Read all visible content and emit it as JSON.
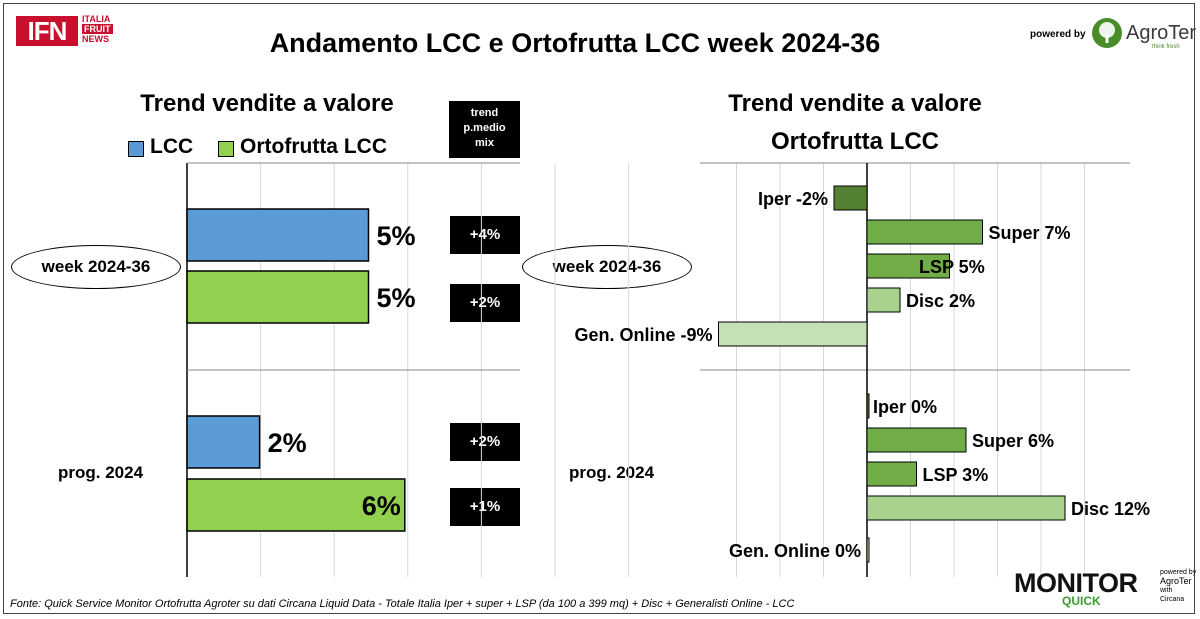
{
  "header": {
    "title": "Andamento LCC e Ortofrutta LCC week 2024-36",
    "logo_main": "IFN",
    "logo_side": [
      "ITALIA",
      "FRUIT",
      "NEWS"
    ],
    "powered_by": "powered by",
    "brand": "AgroTer",
    "brand_tagline": "think fresh"
  },
  "footer": {
    "source": "Fonte: Quick Service Monitor Ortofrutta Agroter su dati Circana Liquid Data - Totale Italia Iper + super + LSP (da 100 a 399 mq) + Disc + Generalisti Online - LCC",
    "monitor": "MONITOR",
    "quick": "QUICK",
    "powered_small": [
      "powered by",
      "AgroTer",
      "with",
      "Circana"
    ]
  },
  "colors": {
    "lcc": "#5b9bd5",
    "ortofrutta": "#92d050",
    "iper": "#548235",
    "super": "#70ad47",
    "lsp": "#70ad47",
    "disc": "#a9d18e",
    "online": "#c5e0b4",
    "grid": "#d9d9d9"
  },
  "chart_data": [
    {
      "type": "bar",
      "orientation": "horizontal",
      "title": "Trend vendite a valore",
      "legend": [
        "LCC",
        "Ortofrutta LCC"
      ],
      "legend_position": "top",
      "grid": true,
      "xlim": [
        -5,
        10
      ],
      "trend_header": [
        "trend",
        "p.medio",
        "mix"
      ],
      "groups": [
        {
          "label": "week 2024-36",
          "bars": [
            {
              "series": "LCC",
              "value": 5,
              "label": "5%",
              "trend": "+4%"
            },
            {
              "series": "Ortofrutta LCC",
              "value": 5,
              "label": "5%",
              "trend": "+2%"
            }
          ]
        },
        {
          "label": "prog. 2024",
          "bars": [
            {
              "series": "LCC",
              "value": 2,
              "label": "2%",
              "trend": "+2%"
            },
            {
              "series": "Ortofrutta LCC",
              "value": 6,
              "label": "6%",
              "trend": "+1%"
            }
          ]
        }
      ]
    },
    {
      "type": "bar",
      "orientation": "horizontal",
      "title": "Trend vendite a valore",
      "subtitle": "Ortofrutta LCC",
      "grid": true,
      "xlim": [
        -10,
        20
      ],
      "groups": [
        {
          "label": "week 2024-36",
          "bars": [
            {
              "category": "Iper",
              "value": -2,
              "label": "Iper -2%"
            },
            {
              "category": "Super",
              "value": 7,
              "label": "Super 7%"
            },
            {
              "category": "LSP",
              "value": 5,
              "label": "LSP 5%"
            },
            {
              "category": "Disc",
              "value": 2,
              "label": "Disc 2%"
            },
            {
              "category": "Gen. Online",
              "value": -9,
              "label": "Gen. Online -9%"
            }
          ]
        },
        {
          "label": "prog. 2024",
          "bars": [
            {
              "category": "Iper",
              "value": 0,
              "label": "Iper 0%"
            },
            {
              "category": "Super",
              "value": 6,
              "label": "Super 6%"
            },
            {
              "category": "LSP",
              "value": 3,
              "label": "LSP 3%"
            },
            {
              "category": "Disc",
              "value": 12,
              "label": "Disc 12%"
            },
            {
              "category": "Gen. Online",
              "value": 0,
              "label": "Gen. Online 0%"
            }
          ]
        }
      ]
    }
  ]
}
